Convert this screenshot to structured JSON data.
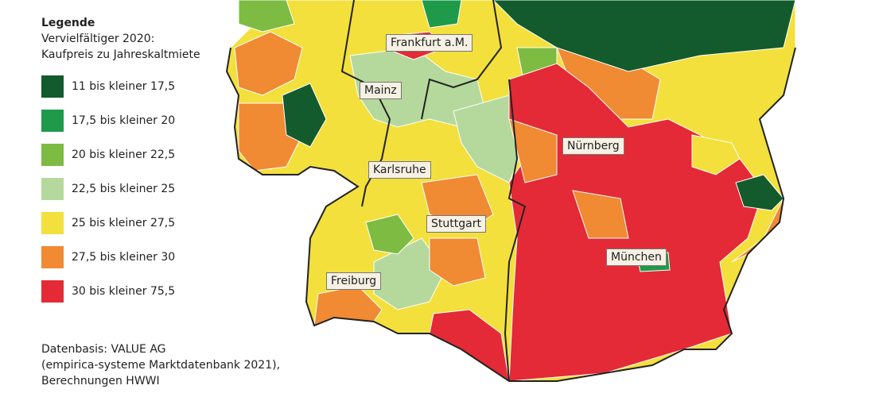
{
  "legend": {
    "title": "Legende",
    "subtitle": [
      "Vervielfältiger 2020:",
      "Kaufpreis zu Jahreskaltmiete"
    ],
    "items": [
      {
        "label": "11 bis kleiner 17,5",
        "color": "#135b2c"
      },
      {
        "label": "17,5 bis kleiner 20",
        "color": "#1f9a4b"
      },
      {
        "label": "20 bis kleiner 22,5",
        "color": "#7dbb42"
      },
      {
        "label": "22,5 bis kleiner 25",
        "color": "#b5d99c"
      },
      {
        "label": "25 bis kleiner 27,5",
        "color": "#f3e03c"
      },
      {
        "label": "27,5 bis kleiner 30",
        "color": "#f08a33"
      },
      {
        "label": "30 bis kleiner 75,5",
        "color": "#e42a36"
      }
    ]
  },
  "cities": [
    "Frankfurt a.M.",
    "Mainz",
    "Karlsruhe",
    "Stuttgart",
    "Freiburg",
    "Nürnberg",
    "München"
  ],
  "source": [
    "Datenbasis: VALUE AG",
    "(empirica-systeme Marktdatenbank 2021),",
    "Berechnungen HWWI"
  ]
}
